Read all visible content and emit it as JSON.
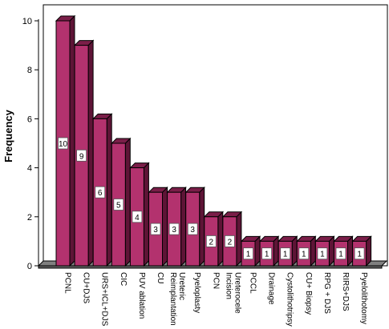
{
  "chart_data": {
    "type": "bar",
    "style": "3d",
    "ylabel": "Frequency",
    "xlabel": "",
    "title": "",
    "ylim": [
      0,
      10
    ],
    "yticks": [
      0,
      2,
      4,
      6,
      8,
      10
    ],
    "bar_color": "#b3326e",
    "bar_top_color": "#7a1e48",
    "bar_side_color": "#5e1436",
    "floor_color": "#808080",
    "categories": [
      "PCNL",
      "CU+DJS",
      "URS+ICL+DJS",
      "CIC",
      "PUV ablation",
      "CU",
      "Ureteric Reimplantation",
      "Pyeloplasty",
      "PCN",
      "Ureterocele Incision",
      "PCCL",
      "Drainage",
      "Cystolithotripsy",
      "CU+ Biopsy",
      "RPG + DJS",
      "RIRS+DJS",
      "Pyelolithotomy"
    ],
    "values": [
      10,
      9,
      6,
      5,
      4,
      3,
      3,
      3,
      2,
      2,
      1,
      1,
      1,
      1,
      1,
      1,
      1
    ]
  }
}
